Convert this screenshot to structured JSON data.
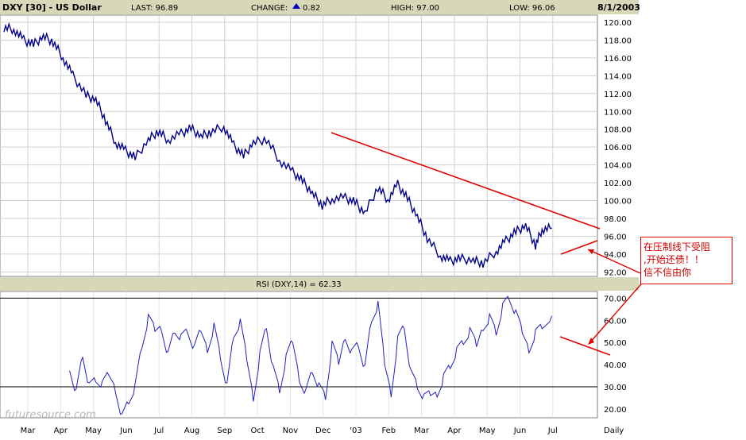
{
  "header": {
    "symbol": "DXY [30] - US Dollar",
    "last": "LAST: 96.89",
    "change_label": "CHANGE:",
    "change_value": "0.82",
    "high": "HIGH: 97.00",
    "low": "LOW: 96.06",
    "date": "8/1/2003"
  },
  "rsi_header": "RSI (DXY,14) = 62.33",
  "watermark": "futuresource.com",
  "annotation": {
    "lines": [
      "在压制线下受阻",
      ",开始还债！！",
      "信不信由你"
    ]
  },
  "colors": {
    "header_bg": "#d8d8b8",
    "price_line": "#00008b",
    "rsi_line": "#2020c0",
    "trend_line": "#e00000",
    "grid": "#c8c8c8"
  },
  "chart_data": [
    {
      "type": "line",
      "title": "DXY [30] - US Dollar",
      "x_ticks": [
        "Mar",
        "Apr",
        "May",
        "Jun",
        "Jul",
        "Aug",
        "Sep",
        "Oct",
        "Nov",
        "Dec",
        "'03",
        "Feb",
        "Mar",
        "Apr",
        "May",
        "Jun",
        "Jul",
        "Daily"
      ],
      "ylim": [
        91.5,
        120.8
      ],
      "y_ticks": [
        "92.00",
        "94.00",
        "96.00",
        "98.00",
        "100.00",
        "102.00",
        "104.00",
        "106.00",
        "108.00",
        "110.00",
        "112.00",
        "114.00",
        "116.00",
        "118.00",
        "120.00"
      ],
      "grid": true,
      "series": [
        {
          "x": [
            0,
            0.3,
            0.6,
            0.9,
            1.2,
            1.5,
            1.8,
            2.1,
            2.5,
            2.8,
            3.1,
            3.4,
            3.7,
            4.0,
            4.4,
            4.7,
            5.0,
            5.4,
            5.7,
            6.0,
            6.3,
            6.7,
            7.0,
            7.3,
            7.6,
            8.0,
            8.4,
            8.8,
            9.1,
            9.4,
            9.7,
            10.0,
            10.4,
            10.7,
            11.0,
            11.4,
            11.7,
            12.0,
            12.3,
            12.6,
            12.9,
            13.3,
            13.6,
            13.9,
            14.3,
            14.6,
            15.0,
            15.3,
            15.6,
            15.9,
            16.2,
            16.4,
            16.7
          ],
          "values": [
            119.4,
            119.2,
            118.0,
            117.5,
            118.4,
            117.8,
            116.0,
            114.0,
            111.8,
            111.3,
            109.0,
            106.5,
            105.6,
            104.8,
            106.8,
            107.8,
            106.8,
            107.5,
            108.1,
            107.2,
            107.7,
            108.3,
            106.2,
            105.0,
            106.5,
            106.9,
            104.5,
            103.2,
            102.2,
            100.8,
            99.5,
            100.2,
            100.3,
            99.8,
            98.6,
            101.5,
            100.1,
            101.8,
            100.2,
            98.2,
            95.8,
            93.8,
            93.2,
            93.5,
            93.3,
            93.0,
            94.3,
            95.5,
            96.5,
            97.2,
            95.0,
            96.8,
            96.9
          ]
        }
      ]
    },
    {
      "type": "line",
      "title": "RSI (DXY,14) = 62.33",
      "ylim": [
        16,
        73
      ],
      "y_ticks": [
        "20.00",
        "30.00",
        "40.00",
        "50.00",
        "60.00",
        "70.00"
      ],
      "reference_lines": [
        30,
        70
      ],
      "series": [
        {
          "x": [
            2.0,
            2.2,
            2.4,
            2.6,
            2.8,
            3.0,
            3.2,
            3.4,
            3.6,
            3.8,
            4.0,
            4.2,
            4.4,
            4.6,
            4.8,
            5.0,
            5.2,
            5.4,
            5.6,
            5.8,
            6.0,
            6.2,
            6.4,
            6.6,
            6.8,
            7.0,
            7.2,
            7.4,
            7.6,
            7.8,
            8.0,
            8.2,
            8.4,
            8.6,
            8.8,
            9.0,
            9.2,
            9.4,
            9.6,
            9.8,
            10.0,
            10.2,
            10.4,
            10.6,
            10.8,
            11.0,
            11.2,
            11.4,
            11.6,
            11.8,
            12.0,
            12.2,
            12.4,
            12.6,
            12.8,
            13.0,
            13.2,
            13.4,
            13.6,
            13.8,
            14.0,
            14.2,
            14.4,
            14.6,
            14.8,
            15.0,
            15.2,
            15.4,
            15.6,
            15.8,
            16.0,
            16.2,
            16.4,
            16.7
          ],
          "values": [
            40,
            28,
            45,
            30,
            33,
            30,
            35,
            30,
            17,
            24,
            30,
            48,
            60,
            55,
            58,
            45,
            56,
            52,
            55,
            46,
            55,
            48,
            58,
            44,
            30,
            53,
            58,
            42,
            26,
            45,
            58,
            38,
            28,
            42,
            50,
            35,
            28,
            38,
            30,
            25,
            48,
            40,
            54,
            46,
            50,
            38,
            60,
            66,
            40,
            28,
            52,
            58,
            36,
            30,
            24,
            26,
            28,
            35,
            40,
            46,
            50,
            54,
            48,
            58,
            62,
            55,
            66,
            70,
            62,
            54,
            48,
            55,
            58,
            62
          ]
        }
      ]
    }
  ]
}
